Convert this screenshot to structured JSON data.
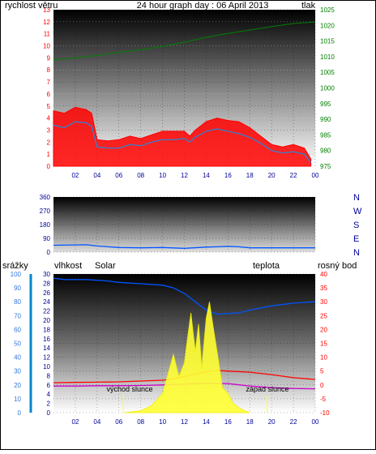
{
  "colors": {
    "red": "#ff0000",
    "green": "#008000",
    "navy": "#000099",
    "blue": "#0055ff",
    "solar": "#ffff33",
    "magenta": "#cc00cc",
    "orange": "#cc9900",
    "grid_dark": "#111111",
    "grid_light": "#ffffff"
  },
  "chart_data": [
    {
      "type": "line",
      "title": "24 hour graph day : 06 April 2013",
      "left_label": "rychlost větru",
      "right_label": "tlak",
      "x_ticks": [
        "02",
        "04",
        "06",
        "08",
        "10",
        "12",
        "14",
        "16",
        "18",
        "20",
        "22",
        "00"
      ],
      "left_ticks": [
        "0",
        "1",
        "2",
        "3",
        "4",
        "5",
        "6",
        "7",
        "8",
        "9",
        "10",
        "11",
        "12",
        "13"
      ],
      "right_ticks": [
        "975",
        "980",
        "985",
        "990",
        "995",
        "1000",
        "1005",
        "1010",
        "1015",
        "1020",
        "1025"
      ],
      "ylim_left": [
        0,
        13
      ],
      "ylim_right": [
        975,
        1025
      ],
      "xlim": [
        0,
        24
      ],
      "series": [
        {
          "kind": "wind_gust",
          "axis": "left",
          "x": [
            0,
            1,
            2,
            3,
            3.5,
            4,
            5,
            6,
            7,
            8,
            9,
            10,
            11,
            12,
            12.5,
            13,
            14,
            15,
            16,
            17,
            18,
            19,
            20,
            21,
            22,
            23,
            23.6
          ],
          "y": [
            4.6,
            4.4,
            4.9,
            4.7,
            4.4,
            2.2,
            2.1,
            2.2,
            2.5,
            2.3,
            2.6,
            2.9,
            2.9,
            2.9,
            2.5,
            3.0,
            3.7,
            4.0,
            3.8,
            3.7,
            3.2,
            2.5,
            1.8,
            1.6,
            1.8,
            1.5,
            0.6
          ]
        },
        {
          "kind": "wind_avg",
          "axis": "left",
          "x": [
            0,
            1,
            2,
            3,
            3.5,
            4,
            5,
            6,
            7,
            8,
            9,
            10,
            11,
            12,
            12.5,
            13,
            14,
            15,
            16,
            17,
            18,
            19,
            20,
            21,
            22,
            23,
            23.6
          ],
          "y": [
            3.4,
            3.2,
            3.7,
            3.6,
            3.3,
            1.6,
            1.5,
            1.5,
            1.8,
            1.7,
            2.0,
            2.2,
            2.2,
            2.3,
            2.0,
            2.4,
            2.9,
            3.1,
            2.9,
            2.7,
            2.4,
            1.9,
            1.3,
            1.1,
            1.2,
            1.0,
            0.3
          ]
        },
        {
          "kind": "pressure",
          "axis": "right",
          "x": [
            0,
            2,
            4,
            6,
            8,
            10,
            12,
            14,
            16,
            18,
            20,
            22,
            24
          ],
          "y": [
            1009,
            1009.6,
            1010.4,
            1011.4,
            1012.2,
            1013.3,
            1014.6,
            1016.2,
            1017.4,
            1018.5,
            1019.6,
            1020.6,
            1021.1
          ]
        }
      ]
    },
    {
      "type": "line",
      "left_ticks": [
        "0",
        "90",
        "180",
        "270",
        "360"
      ],
      "compass": [
        "N",
        "W",
        "S",
        "E",
        "N"
      ],
      "ylim": [
        0,
        360
      ],
      "xlim": [
        0,
        24
      ],
      "series": [
        {
          "kind": "wind_direction",
          "x": [
            0,
            3,
            4,
            6,
            8,
            10,
            12,
            14,
            15,
            16,
            17,
            18,
            24
          ],
          "y": [
            45,
            48,
            40,
            30,
            28,
            30,
            25,
            33,
            35,
            38,
            35,
            28,
            28
          ]
        }
      ]
    },
    {
      "type": "line",
      "header_labels": [
        "srážky",
        "vlhkost",
        "Solar",
        "teplota",
        "rosný bod"
      ],
      "x_ticks": [
        "02",
        "04",
        "06",
        "08",
        "10",
        "12",
        "14",
        "16",
        "18",
        "20",
        "22",
        "00"
      ],
      "rain_ticks": [
        "0",
        "10",
        "20",
        "30",
        "40",
        "50",
        "60",
        "70",
        "80",
        "90",
        "100"
      ],
      "humidity_ticks": [
        "0",
        "2",
        "4",
        "6",
        "8",
        "10",
        "12",
        "14",
        "16",
        "18",
        "20",
        "22",
        "24",
        "26",
        "28",
        "30"
      ],
      "temp_ticks": [
        "-10",
        "-5",
        "0",
        "5",
        "10",
        "15",
        "20",
        "25",
        "30",
        "35",
        "40"
      ],
      "ylim_rain": [
        0,
        100
      ],
      "ylim_temp": [
        -10,
        40
      ],
      "xlim": [
        0,
        24
      ],
      "annotations": [
        {
          "text": "východ slunce",
          "x": 6.4
        },
        {
          "text": "západ slunce",
          "x": 19.6
        }
      ],
      "series": [
        {
          "kind": "humidity",
          "axis": "rain",
          "x": [
            0,
            1,
            3,
            5,
            6,
            8,
            10,
            11,
            12,
            13,
            14,
            15,
            17,
            18,
            20,
            22,
            24
          ],
          "y": [
            97,
            96,
            96,
            95,
            94,
            93,
            92,
            90,
            86,
            80,
            74,
            71,
            72,
            74,
            77,
            79,
            80
          ]
        },
        {
          "kind": "temperature",
          "axis": "temp",
          "x": [
            0,
            2,
            4,
            6,
            8,
            10,
            11,
            12,
            13,
            14,
            15,
            16,
            18,
            20,
            22,
            24
          ],
          "y": [
            0.8,
            0.9,
            1.0,
            1.1,
            1.4,
            1.7,
            2.2,
            3.0,
            4.0,
            4.7,
            5.2,
            5.0,
            4.6,
            3.7,
            2.6,
            2.0
          ]
        },
        {
          "kind": "dewpoint",
          "axis": "temp",
          "x": [
            0,
            2,
            4,
            6,
            8,
            10,
            12,
            14,
            16,
            18,
            20,
            22,
            24
          ],
          "y": [
            -0.4,
            -0.4,
            -0.3,
            -0.3,
            -0.2,
            0,
            0.3,
            0.6,
            0.5,
            -0.4,
            -1.0,
            -1.3,
            -1.4
          ]
        },
        {
          "kind": "solar",
          "axis": "temp",
          "x": [
            6.5,
            8,
            9,
            10,
            10.5,
            11,
            11.5,
            12,
            12.3,
            12.6,
            13,
            13.3,
            13.6,
            14,
            14.3,
            14.6,
            15,
            15.5,
            16,
            16.5,
            17,
            17.5,
            18
          ],
          "y": [
            -10,
            -9.3,
            -7.5,
            -3,
            4,
            11,
            3,
            8,
            17,
            26,
            12,
            22,
            6,
            24,
            30,
            22,
            12,
            -1,
            -3,
            -6.8,
            -8.2,
            -9.3,
            -10
          ]
        }
      ]
    }
  ]
}
